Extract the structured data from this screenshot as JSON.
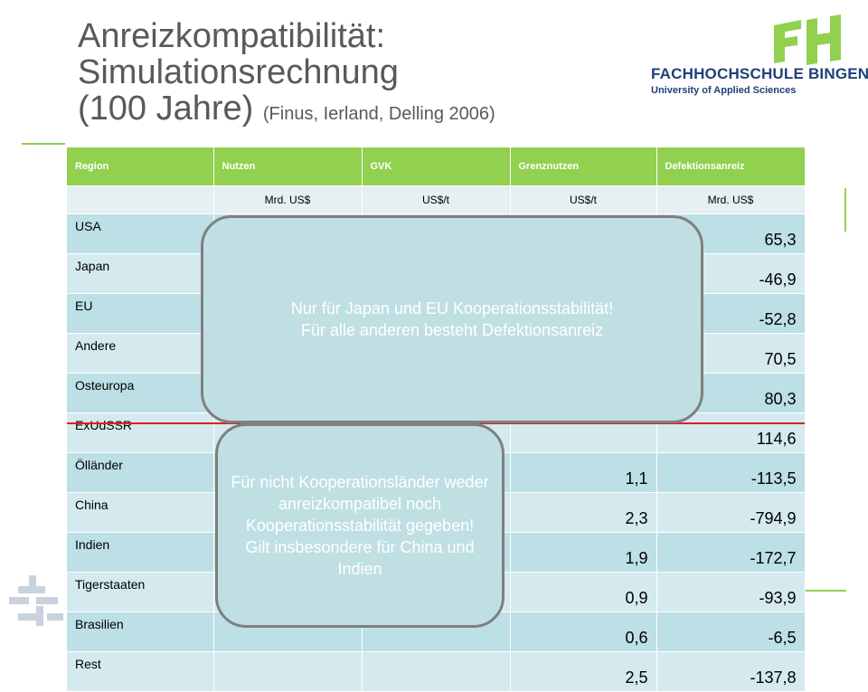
{
  "title": {
    "line1": "Anreizkompatibilität:",
    "line2": "Simulationsrechnung",
    "line3": "(100 Jahre)",
    "citation": "(Finus, Ierland, Delling 2006)"
  },
  "logo": {
    "letters": "FH",
    "line1": "FACHHOCHSCHULE BINGEN",
    "line2": "University of Applied Sciences",
    "color_green": "#92d050",
    "color_blue": "#1f3f7a"
  },
  "table": {
    "headers": [
      "Region",
      "Nutzen",
      "GVK",
      "Grenznutzen",
      "Defektionsanreiz"
    ],
    "units": [
      "",
      "Mrd. US$",
      "US$/t",
      "US$/t",
      "Mrd. US$"
    ],
    "rows": [
      {
        "region": "USA",
        "grenznutzen": "",
        "defektion": "65,3"
      },
      {
        "region": "Japan",
        "grenznutzen": "",
        "defektion": "-46,9"
      },
      {
        "region": "EU",
        "grenznutzen": "",
        "defektion": "-52,8"
      },
      {
        "region": "Andere",
        "grenznutzen": "",
        "defektion": "70,5"
      },
      {
        "region": "Osteuropa",
        "grenznutzen": "",
        "defektion": "80,3"
      },
      {
        "region": "ExUdSSR",
        "grenznutzen": "",
        "defektion": "114,6"
      },
      {
        "region": "Ölländer",
        "grenznutzen": "1,1",
        "defektion": "-113,5"
      },
      {
        "region": "China",
        "grenznutzen": "2,3",
        "defektion": "-794,9"
      },
      {
        "region": "Indien",
        "grenznutzen": "1,9",
        "defektion": "-172,7"
      },
      {
        "region": "Tigerstaaten",
        "grenznutzen": "0,9",
        "defektion": "-93,9"
      },
      {
        "region": "Brasilien",
        "grenznutzen": "0,6",
        "defektion": "-6,5"
      },
      {
        "region": "Rest",
        "grenznutzen": "2,5",
        "defektion": "-137,8"
      }
    ],
    "header_color": "#92d050",
    "row_color": "#bddfe6",
    "separator_color": "#e02020"
  },
  "callouts": {
    "top": "Nur für Japan und EU Kooperationsstabilität!\nFür alle anderen besteht Defektionsanreiz",
    "bottom": "Für nicht Kooperationsländer weder anreizkompatibel noch Kooperationsstabilität gegeben!\nGilt insbesondere für China und Indien"
  }
}
